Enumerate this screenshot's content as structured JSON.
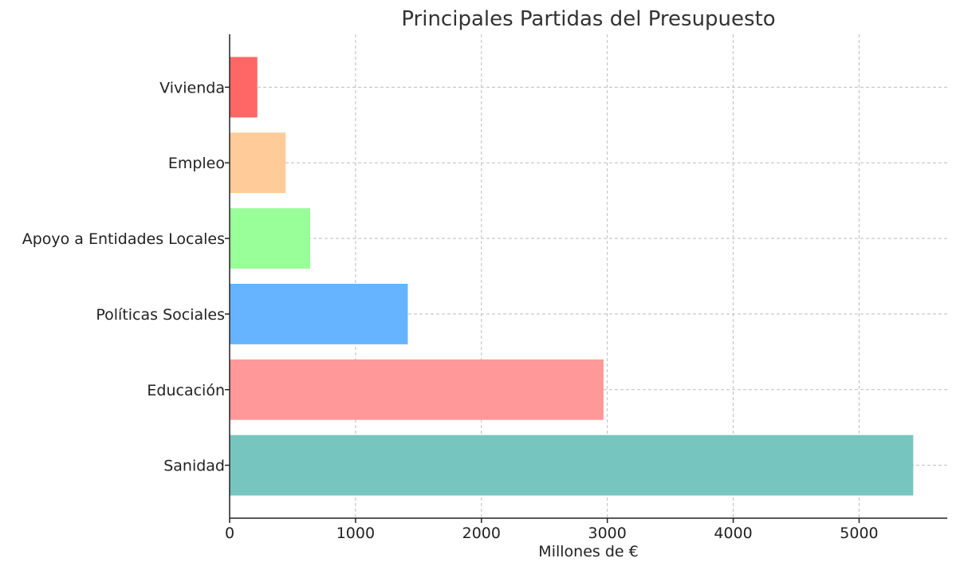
{
  "chart_data": {
    "type": "bar",
    "orientation": "horizontal",
    "title": "Principales Partidas del Presupuesto",
    "xlabel": "Millones de €",
    "ylabel": "",
    "categories": [
      "Sanidad",
      "Educación",
      "Políticas Sociales",
      "Apoyo a Entidades Locales",
      "Empleo",
      "Vivienda"
    ],
    "values": [
      5430,
      2970,
      1415,
      640,
      445,
      220
    ],
    "colors": [
      "#76c6bf",
      "#ff9999",
      "#66b3ff",
      "#99ff99",
      "#ffcc99",
      "#ff6666"
    ],
    "xlim": [
      0,
      5700
    ],
    "xticks": [
      0,
      1000,
      2000,
      3000,
      4000,
      5000
    ],
    "grid": true
  }
}
